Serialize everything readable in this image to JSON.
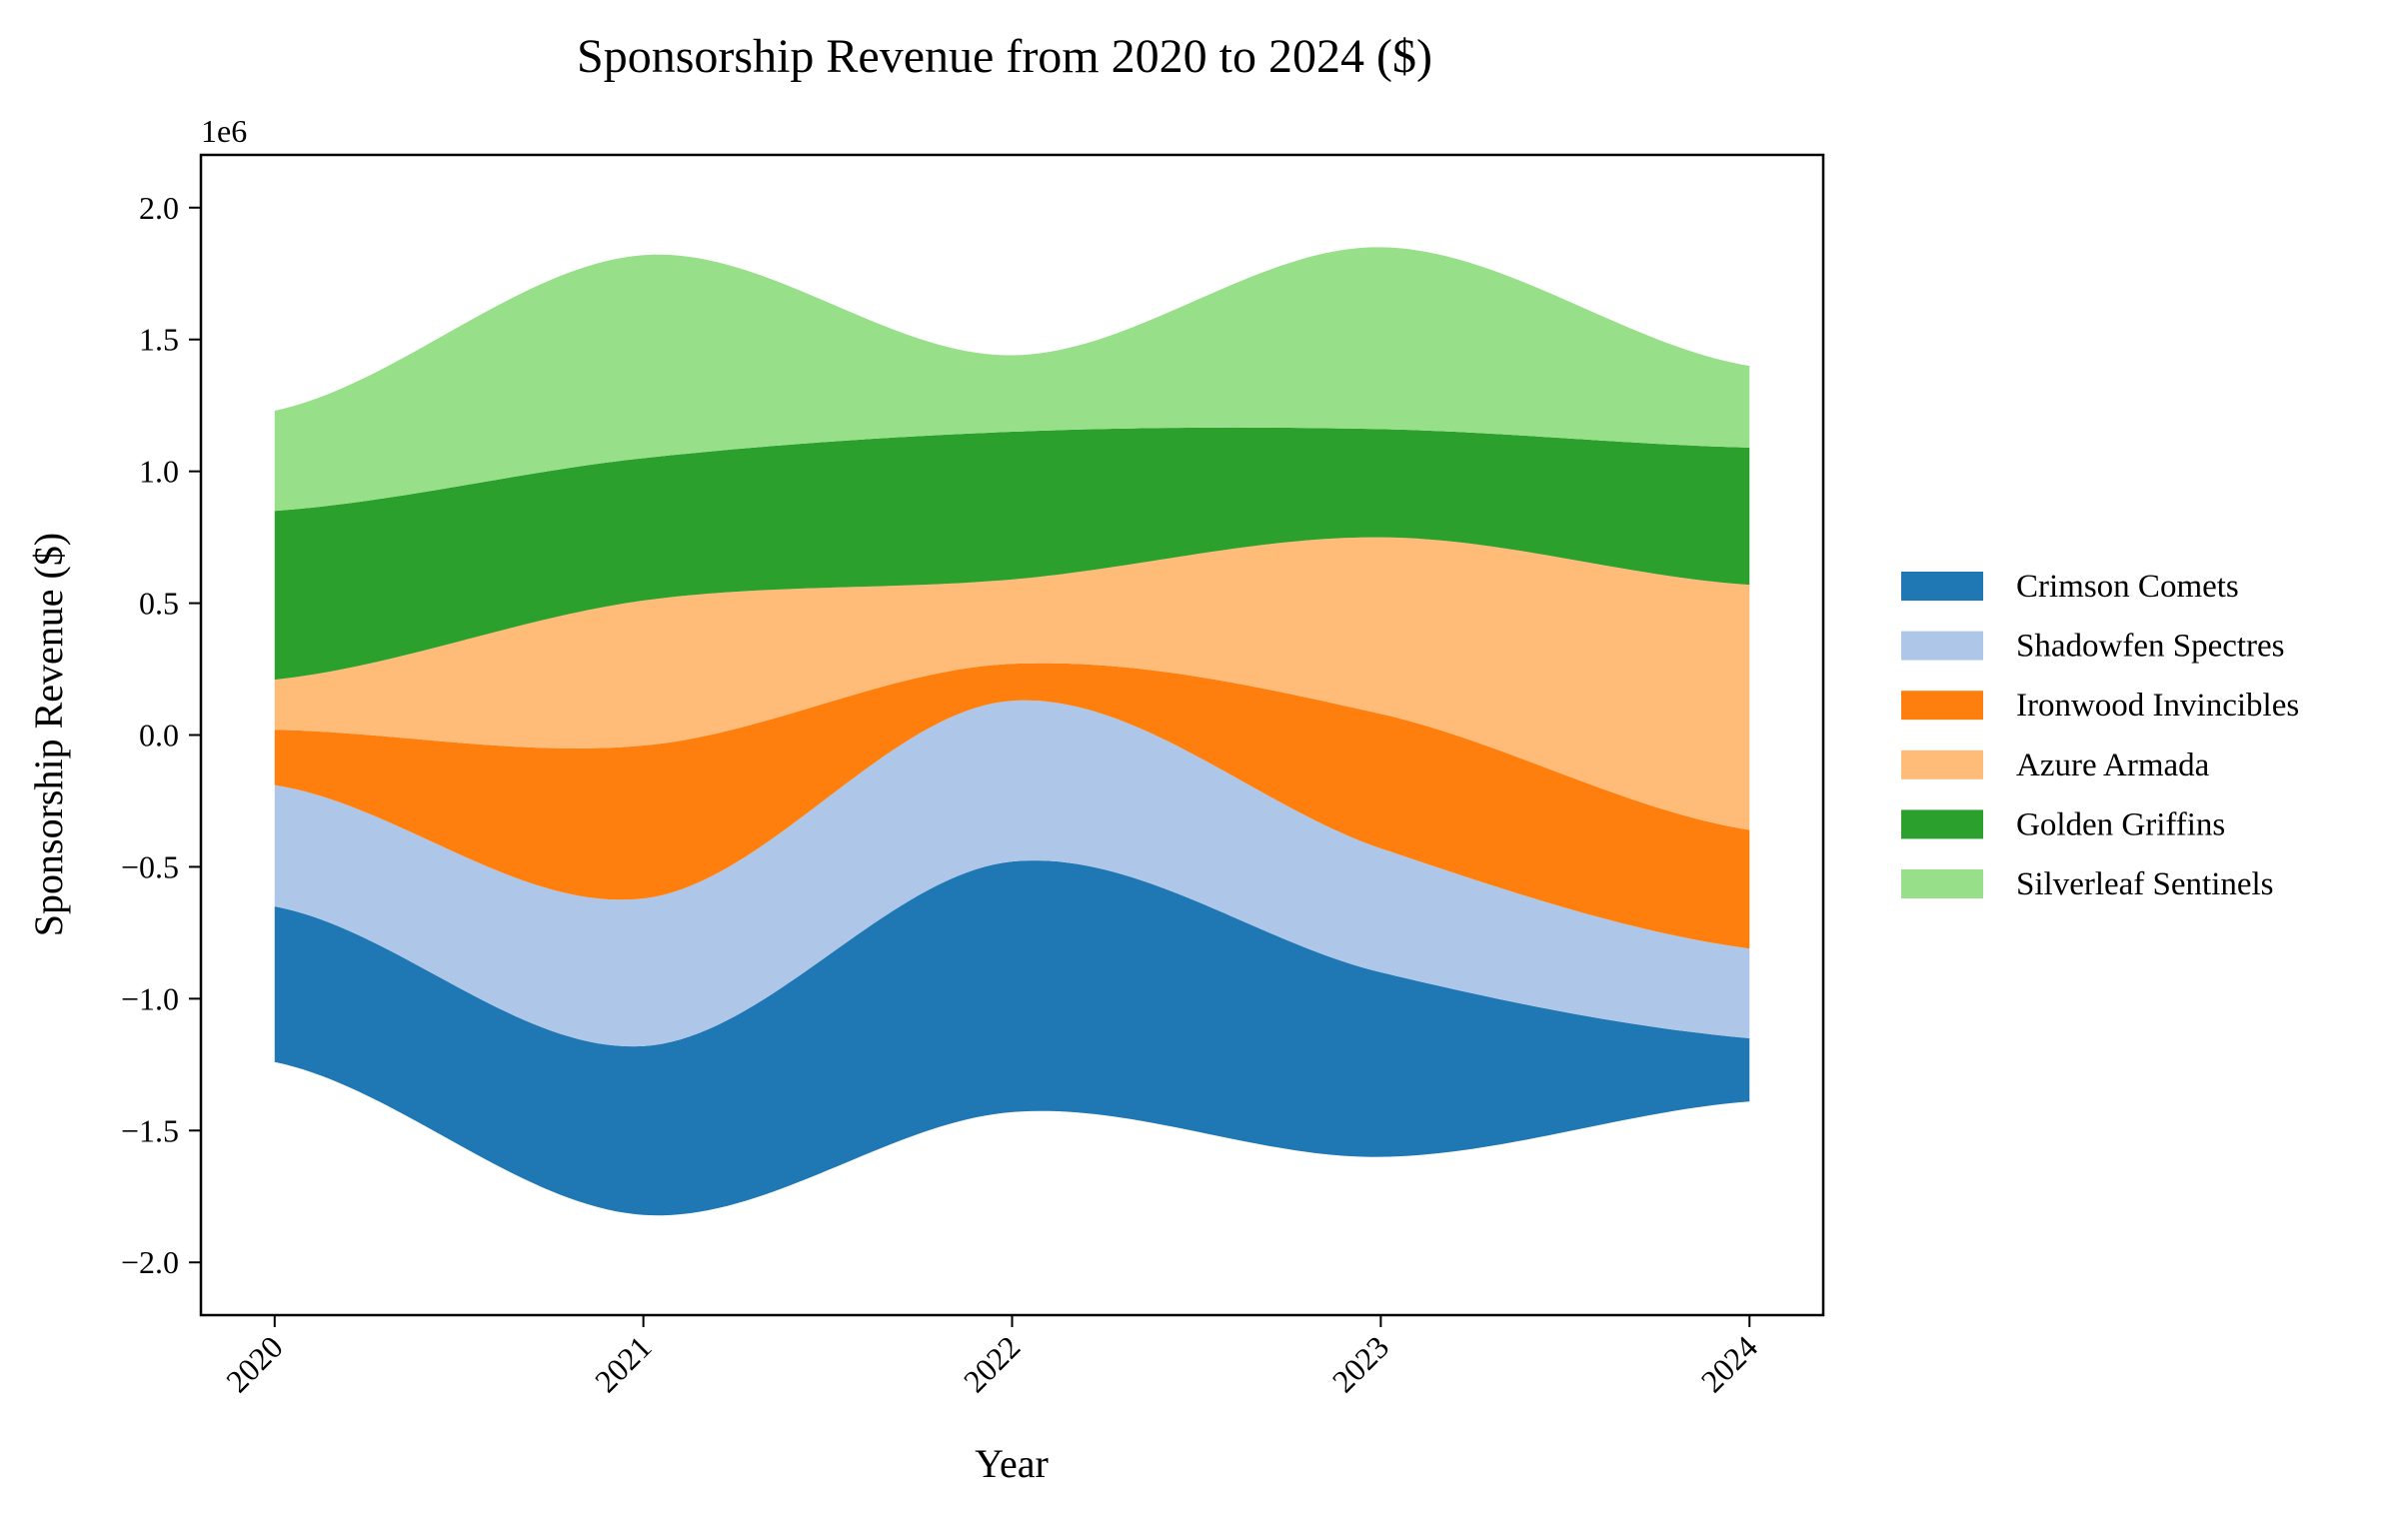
{
  "chart_data": {
    "type": "area",
    "subtype": "streamgraph",
    "title": "Sponsorship Revenue from 2020 to 2024 ($)",
    "xlabel": "Year",
    "ylabel": "Sponsorship Revenue ($)",
    "y_offset_label": "1e6",
    "x": [
      2020,
      2021,
      2022,
      2023,
      2024
    ],
    "x_tick_labels": [
      "2020",
      "2021",
      "2022",
      "2023",
      "2024"
    ],
    "y_ticks": [
      -2.0,
      -1.5,
      -1.0,
      -0.5,
      0.0,
      0.5,
      1.0,
      1.5,
      2.0
    ],
    "y_tick_labels": [
      "−2.0",
      "−1.5",
      "−1.0",
      "−0.5",
      "0.0",
      "0.5",
      "1.0",
      "1.5",
      "2.0"
    ],
    "ylim": [
      -2.2,
      2.2
    ],
    "xlim": [
      2019.8,
      2024.2
    ],
    "baseline": [
      -1.24,
      -1.82,
      -1.43,
      -1.6,
      -1.39
    ],
    "grid": false,
    "legend_position": "right",
    "series": [
      {
        "name": "Crimson Comets",
        "color": "#1f77b4",
        "values": [
          590000,
          640000,
          950000,
          700000,
          240000
        ]
      },
      {
        "name": "Shadowfen Spectres",
        "color": "#aec7e8",
        "values": [
          460000,
          560000,
          610000,
          470000,
          340000
        ]
      },
      {
        "name": "Ironwood Invincibles",
        "color": "#ff7f0e",
        "values": [
          210000,
          580000,
          140000,
          510000,
          450000
        ]
      },
      {
        "name": "Azure Armada",
        "color": "#ffbb78",
        "values": [
          190000,
          550000,
          320000,
          670000,
          930000
        ]
      },
      {
        "name": "Golden Griffins",
        "color": "#2ca02c",
        "values": [
          640000,
          540000,
          560000,
          410000,
          520000
        ]
      },
      {
        "name": "Silverleaf Sentinels",
        "color": "#98df8a",
        "values": [
          380000,
          770000,
          290000,
          690000,
          310000
        ]
      }
    ]
  }
}
